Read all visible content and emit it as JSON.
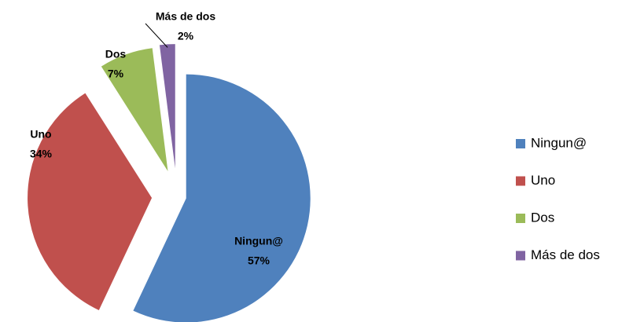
{
  "chart_data": {
    "type": "pie",
    "categories": [
      "Ningun@",
      "Uno",
      "Dos",
      "Más de dos"
    ],
    "values": [
      57,
      34,
      7,
      2
    ],
    "value_labels": [
      "57%",
      "34%",
      "7%",
      "2%"
    ],
    "colors": [
      "#4f81bd",
      "#c0504d",
      "#9bbb59",
      "#8064a2"
    ],
    "legend": "right"
  }
}
